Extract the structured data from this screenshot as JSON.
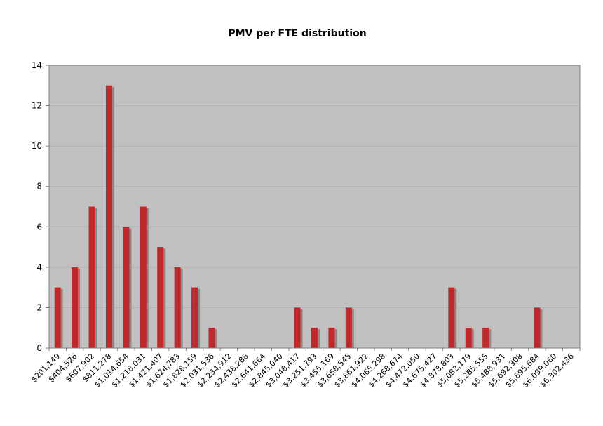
{
  "chart_data": {
    "type": "bar",
    "title": "PMV per FTE distribution",
    "xlabel": "",
    "ylabel": "",
    "ylim": [
      0,
      14
    ],
    "yticks": [
      "0",
      "2",
      "4",
      "6",
      "8",
      "10",
      "12",
      "14"
    ],
    "grid": true,
    "legend": "none",
    "categories": [
      "$201,149",
      "$404,526",
      "$607,902",
      "$811,278",
      "$1,014,654",
      "$1,218,031",
      "$1,421,407",
      "$1,624,783",
      "$1,828,159",
      "$2,031,536",
      "$2,234,912",
      "$2,438,288",
      "$2,641,664",
      "$2,845,040",
      "$3,048,417",
      "$3,251,793",
      "$3,455,169",
      "$3,658,545",
      "$3,861,922",
      "$4,065,298",
      "$4,268,674",
      "$4,472,050",
      "$4,675,427",
      "$4,878,803",
      "$5,082,179",
      "$5,285,555",
      "$5,488,931",
      "$5,692,308",
      "$5,895,684",
      "$6,099,060",
      "$6,302,436"
    ],
    "values": [
      3,
      4,
      7,
      13,
      6,
      7,
      5,
      4,
      3,
      1,
      0,
      0,
      0,
      0,
      2,
      1,
      1,
      2,
      0,
      0,
      0,
      0,
      0,
      3,
      1,
      1,
      0,
      0,
      2,
      0,
      0
    ],
    "colors": {
      "bar": "#c0282a",
      "bar_shadow": "#8a8a8a",
      "plot_background": "#c0c0c0",
      "gridline": "#b0b0b0",
      "axis": "#808080"
    }
  }
}
